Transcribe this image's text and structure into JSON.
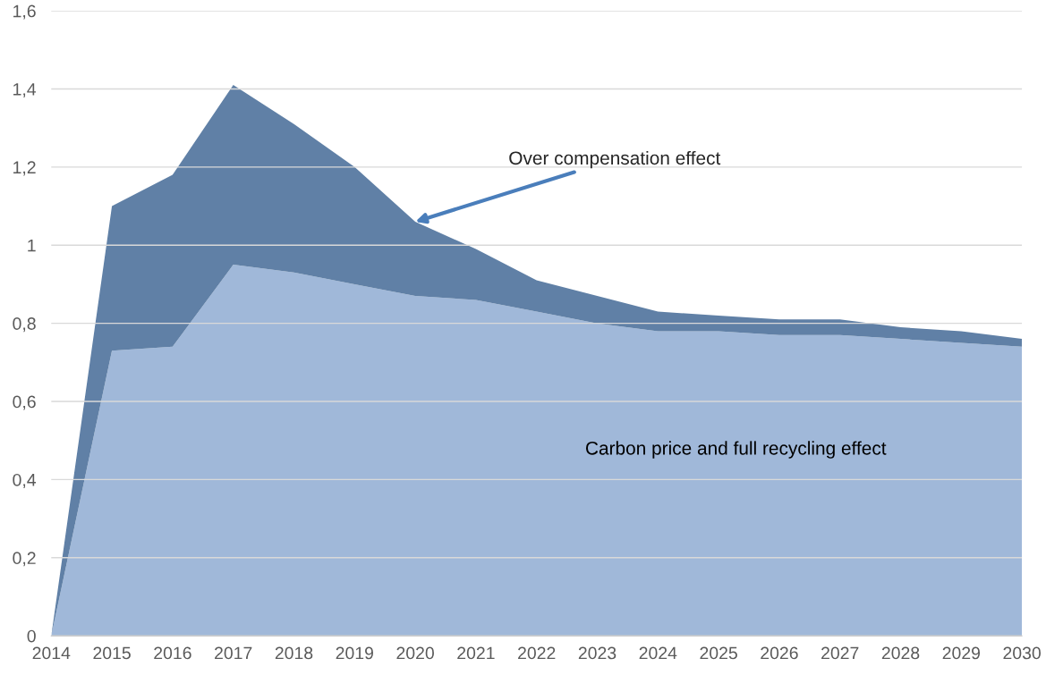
{
  "chart_data": {
    "type": "area",
    "stacked": true,
    "x": [
      2014,
      2015,
      2016,
      2017,
      2018,
      2019,
      2020,
      2021,
      2022,
      2023,
      2024,
      2025,
      2026,
      2027,
      2028,
      2029,
      2030
    ],
    "series": [
      {
        "name": "Carbon price and full recycling effect",
        "color": "#a0b8d9",
        "values": [
          0,
          0.73,
          0.74,
          0.95,
          0.93,
          0.9,
          0.87,
          0.86,
          0.83,
          0.8,
          0.78,
          0.78,
          0.77,
          0.77,
          0.76,
          0.75,
          0.74
        ]
      },
      {
        "color": "#6080a6",
        "values": [
          0,
          0.37,
          0.44,
          0.46,
          0.38,
          0.3,
          0.19,
          0.13,
          0.08,
          0.07,
          0.05,
          0.04,
          0.04,
          0.04,
          0.03,
          0.03,
          0.02
        ]
      }
    ],
    "annotations": [
      {
        "text": "Over compensation effect",
        "x": 2020,
        "y": 1.06
      }
    ],
    "xlim": [
      2014,
      2030
    ],
    "xticks": [
      2014,
      2015,
      2016,
      2017,
      2018,
      2019,
      2020,
      2021,
      2022,
      2023,
      2024,
      2025,
      2026,
      2027,
      2028,
      2029,
      2030
    ],
    "ylim": [
      0,
      1.6
    ],
    "yticks": [
      0,
      {
        "value": 0.2,
        "label": "0,2"
      },
      {
        "value": 0.4,
        "label": "0,4"
      },
      {
        "value": 0.6,
        "label": "0,6"
      },
      {
        "value": 0.8,
        "label": "0,8"
      },
      1,
      {
        "value": 1.2,
        "label": "1,2"
      },
      {
        "value": 1.4,
        "label": "1,4"
      },
      {
        "value": 1.6,
        "label": "1,6"
      }
    ],
    "grid": "y",
    "legend": false
  }
}
